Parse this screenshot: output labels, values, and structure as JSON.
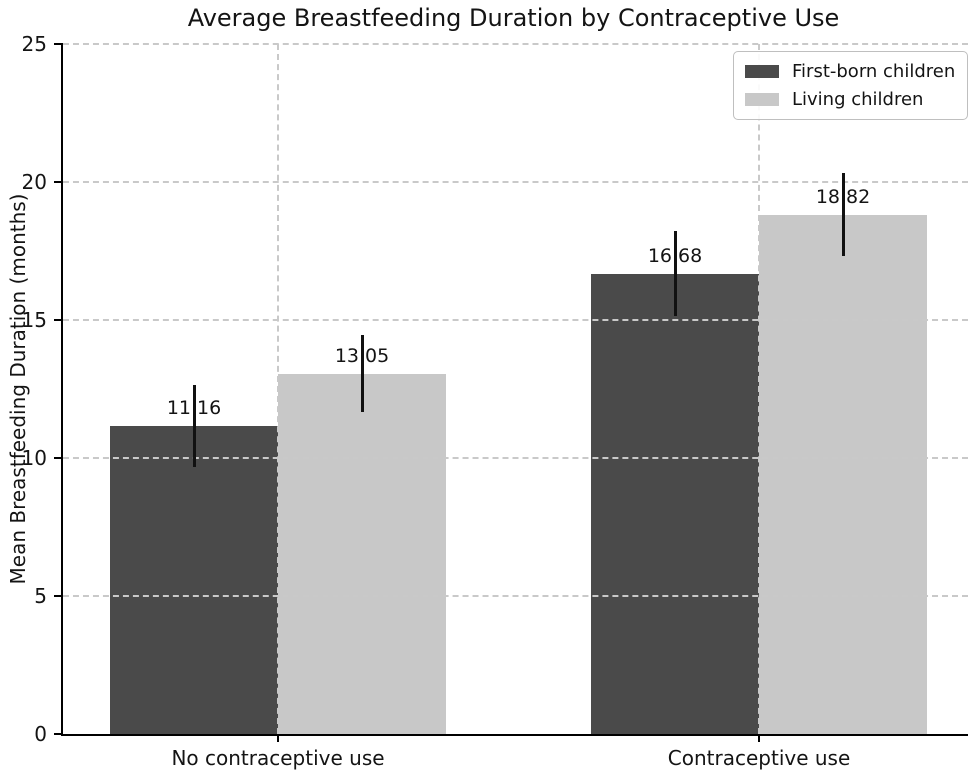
{
  "chart_data": {
    "type": "bar",
    "title": "Average Breastfeeding Duration by Contraceptive Use",
    "xlabel": "",
    "ylabel": "Mean Breastfeeding Duration (months)",
    "categories": [
      "No contraceptive use",
      "Contraceptive use"
    ],
    "series": [
      {
        "name": "First-born children",
        "color": "#4a4a4a",
        "values": [
          11.16,
          16.68
        ],
        "errors": [
          1.5,
          1.55
        ]
      },
      {
        "name": "Living children",
        "color": "#c8c8c8",
        "values": [
          13.05,
          18.82
        ],
        "errors": [
          1.4,
          1.5
        ]
      }
    ],
    "ylim": [
      0,
      25
    ],
    "yticks": [
      0,
      5,
      10,
      15,
      20,
      25
    ],
    "value_label_format": "2-decimals",
    "grid": "dashed horizontal lines at yticks and dashed vertical lines at category centers, drawn over bars",
    "legend_position": "upper right",
    "colors": {
      "grid": "#c9c9c9",
      "spine": "#000000",
      "error_bar": "#111111",
      "text": "#141414",
      "background": "#ffffff"
    }
  }
}
